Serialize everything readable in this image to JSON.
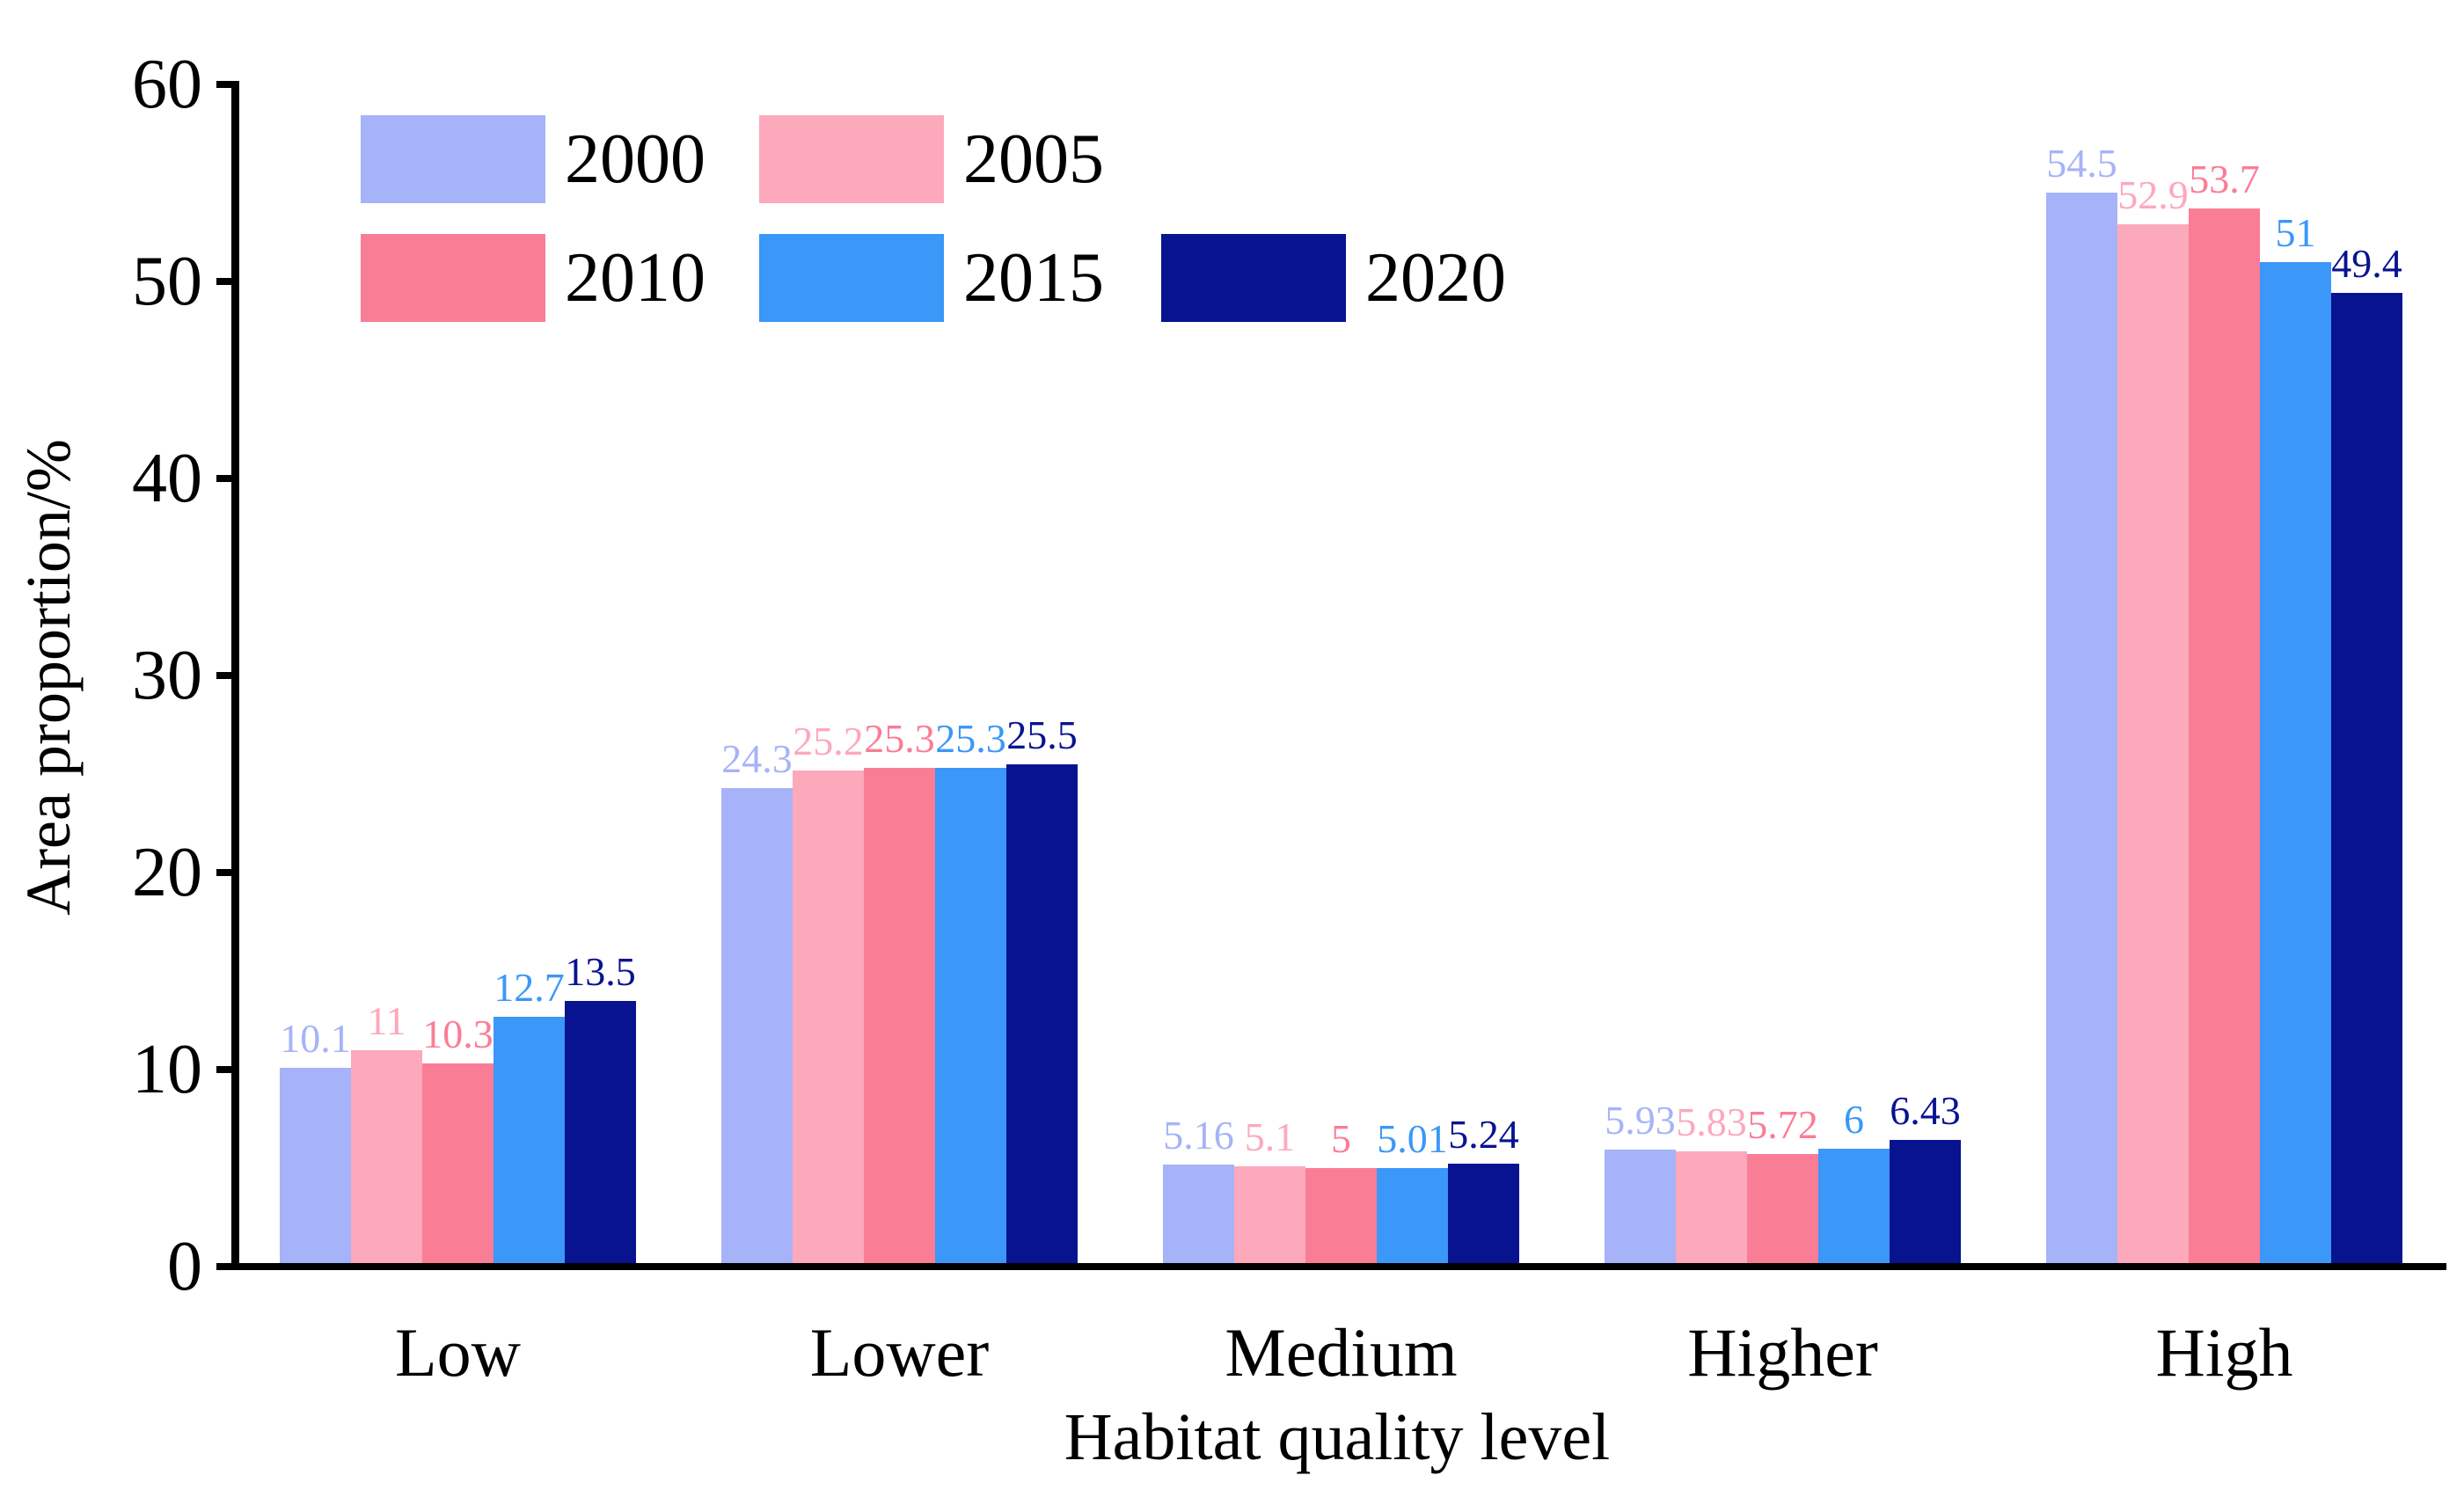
{
  "chart_data": {
    "type": "bar",
    "title": "",
    "xlabel": "Habitat quality level",
    "ylabel": "Area proportion/%",
    "categories": [
      "Low",
      "Lower",
      "Medium",
      "Higher",
      "High"
    ],
    "series": [
      {
        "name": "2000",
        "color": "#a6b3f8",
        "values": [
          10.1,
          24.3,
          5.16,
          5.93,
          54.5
        ]
      },
      {
        "name": "2005",
        "color": "#fca9bb",
        "values": [
          11,
          25.2,
          5.1,
          5.83,
          52.9
        ]
      },
      {
        "name": "2010",
        "color": "#fa7d96",
        "values": [
          10.3,
          25.3,
          5,
          5.72,
          53.7
        ]
      },
      {
        "name": "2015",
        "color": "#3b97f8",
        "values": [
          12.7,
          25.3,
          5.01,
          6,
          51
        ]
      },
      {
        "name": "2020",
        "color": "#081390",
        "values": [
          13.5,
          25.5,
          5.24,
          6.43,
          49.4
        ]
      }
    ],
    "ylim": [
      0,
      60
    ],
    "yticks": [
      0,
      10,
      20,
      30,
      40,
      50,
      60
    ],
    "grid": false,
    "value_labels": true,
    "legend_position": "top-left",
    "axis_color": "#000000"
  },
  "legend": {
    "rows": [
      [
        "2000",
        "2005"
      ],
      [
        "2010",
        "2015",
        "2020"
      ]
    ]
  }
}
